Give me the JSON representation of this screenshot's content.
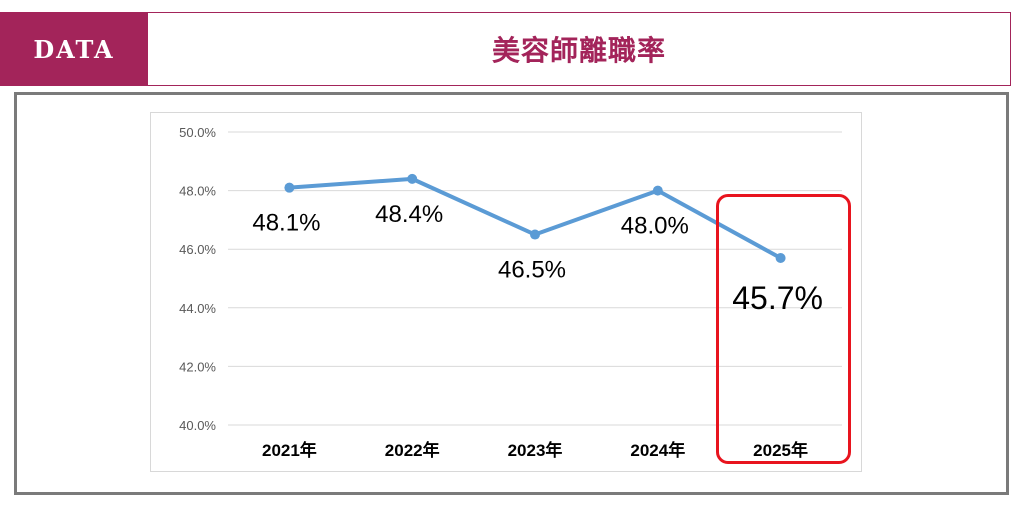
{
  "header": {
    "badge_label": "DATA",
    "title": "美容師離職率"
  },
  "colors": {
    "accent": "#a3245a",
    "line": "#5b9bd5",
    "highlight": "#e8141e"
  },
  "chart_data": {
    "type": "line",
    "title": "",
    "xlabel": "",
    "ylabel": "",
    "categories": [
      "2021年",
      "2022年",
      "2023年",
      "2024年",
      "2025年"
    ],
    "series": [
      {
        "values": [
          48.1,
          48.4,
          46.5,
          48.0,
          45.7
        ]
      }
    ],
    "data_labels": [
      "48.1%",
      "48.4%",
      "46.5%",
      "48.0%",
      "45.7%"
    ],
    "ylim": [
      40,
      50
    ],
    "yticks": [
      40,
      42,
      44,
      46,
      48,
      50
    ],
    "ytick_labels": [
      "40.0%",
      "42.0%",
      "44.0%",
      "46.0%",
      "48.0%",
      "50.0%"
    ],
    "grid": true,
    "legend": "none",
    "highlighted_category": "2025年"
  }
}
